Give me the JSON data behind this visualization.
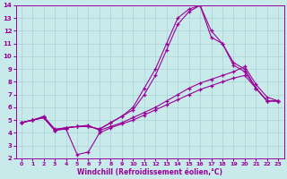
{
  "xlabel": "Windchill (Refroidissement éolien,°C)",
  "bg_color": "#c8eaea",
  "grid_color": "#aad4d4",
  "line_color": "#990099",
  "xlim": [
    -0.5,
    23.5
  ],
  "ylim": [
    2,
    14
  ],
  "xticks": [
    0,
    1,
    2,
    3,
    4,
    5,
    6,
    7,
    8,
    9,
    10,
    11,
    12,
    13,
    14,
    15,
    16,
    17,
    18,
    19,
    20,
    21,
    22,
    23
  ],
  "yticks": [
    2,
    3,
    4,
    5,
    6,
    7,
    8,
    9,
    10,
    11,
    12,
    13,
    14
  ],
  "lines": [
    {
      "x": [
        0,
        1,
        2,
        3,
        4,
        5,
        6,
        7,
        8,
        9,
        10,
        11,
        12,
        13,
        14,
        15,
        16,
        17,
        18,
        19,
        20,
        21,
        22,
        23
      ],
      "y": [
        4.8,
        5.0,
        5.2,
        4.2,
        4.4,
        4.5,
        4.5,
        4.3,
        4.8,
        5.3,
        6.0,
        7.5,
        9.0,
        11.0,
        13.0,
        13.7,
        14.0,
        11.5,
        11.0,
        9.5,
        9.0,
        7.5,
        6.5,
        6.5
      ]
    },
    {
      "x": [
        0,
        1,
        2,
        3,
        4,
        5,
        6,
        7,
        8,
        9,
        10,
        11,
        12,
        13,
        14,
        15,
        16,
        17,
        18,
        19,
        20,
        21,
        22,
        23
      ],
      "y": [
        4.8,
        5.0,
        5.2,
        4.2,
        4.4,
        4.5,
        4.5,
        4.3,
        4.8,
        5.3,
        5.8,
        7.0,
        8.5,
        10.5,
        12.5,
        13.5,
        14.0,
        12.0,
        11.0,
        9.3,
        8.8,
        7.5,
        6.5,
        6.5
      ]
    },
    {
      "x": [
        0,
        1,
        2,
        3,
        4,
        5,
        6,
        7,
        8,
        9,
        10,
        11,
        12,
        13,
        14,
        15,
        16,
        17,
        18,
        19,
        20,
        21,
        22,
        23
      ],
      "y": [
        4.8,
        5.0,
        5.3,
        4.3,
        4.4,
        4.5,
        4.6,
        4.2,
        4.5,
        4.8,
        5.2,
        5.6,
        6.0,
        6.5,
        7.0,
        7.5,
        7.9,
        8.2,
        8.5,
        8.8,
        9.2,
        7.8,
        6.8,
        6.5
      ]
    },
    {
      "x": [
        0,
        1,
        2,
        3,
        4,
        5,
        6,
        7,
        8,
        9,
        10,
        11,
        12,
        13,
        14,
        15,
        16,
        17,
        18,
        19,
        20,
        21,
        22,
        23
      ],
      "y": [
        4.8,
        5.0,
        5.2,
        4.2,
        4.3,
        2.3,
        2.5,
        4.0,
        4.4,
        4.7,
        5.0,
        5.4,
        5.8,
        6.2,
        6.6,
        7.0,
        7.4,
        7.7,
        8.0,
        8.3,
        8.5,
        7.5,
        6.5,
        6.5
      ]
    }
  ]
}
